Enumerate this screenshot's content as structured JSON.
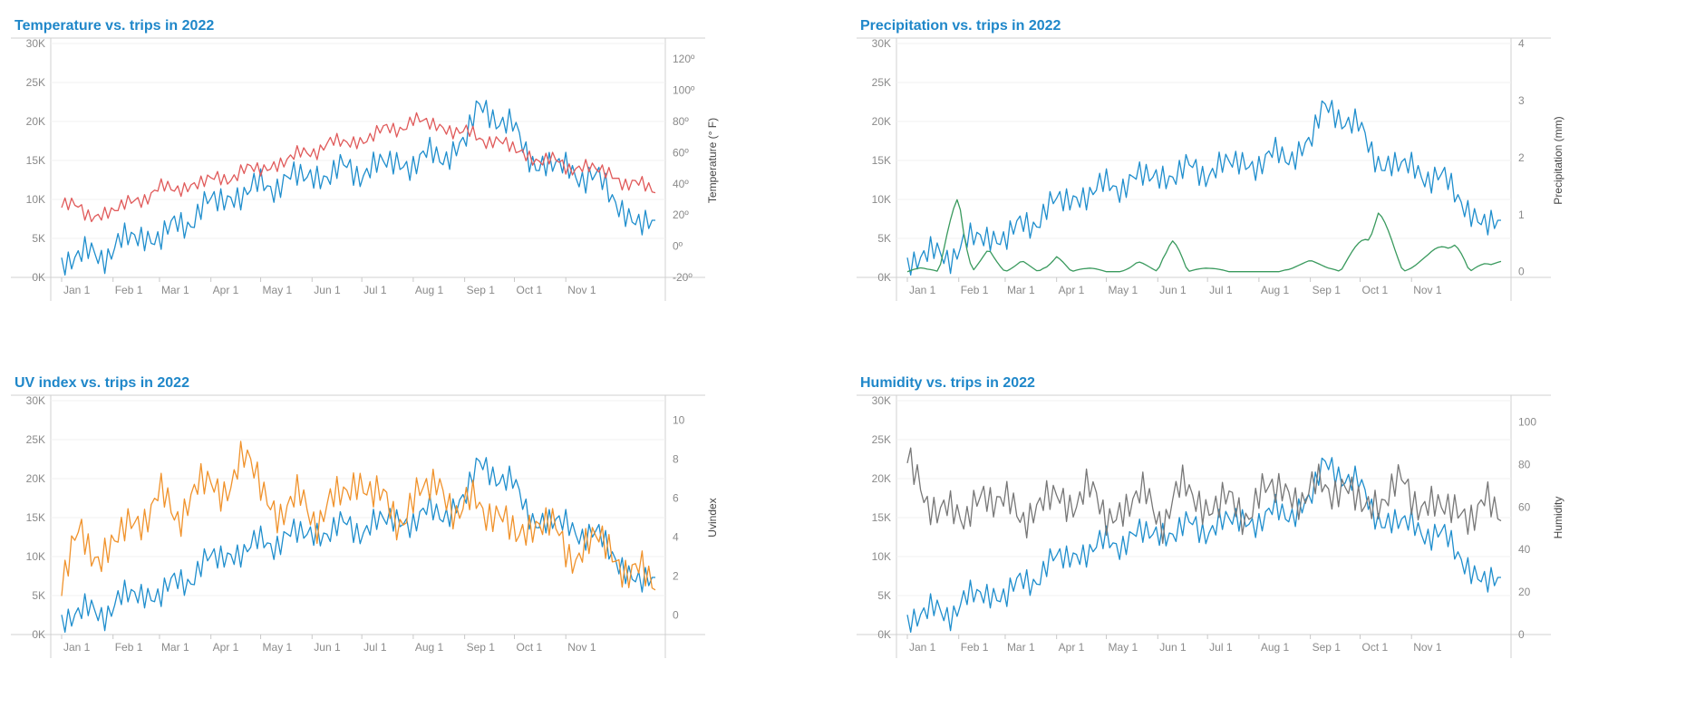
{
  "chart_data": [
    {
      "type": "line",
      "title": "Temperature vs. trips in 2022",
      "x_ticks": [
        "Jan 1",
        "Feb 1",
        "Mar 1",
        "Apr 1",
        "May 1",
        "Jun 1",
        "Jul 1",
        "Aug 1",
        "Sep 1",
        "Oct 1",
        "Nov 1"
      ],
      "y_left": {
        "label": "",
        "ticks": [
          "0K",
          "5K",
          "10K",
          "15K",
          "20K",
          "25K",
          "30K"
        ],
        "ylim": [
          0,
          30000
        ]
      },
      "y_right": {
        "label": "Temperature (° F)",
        "ticks": [
          "-20º",
          "0º",
          "20º",
          "40º",
          "60º",
          "80º",
          "100º",
          "120º"
        ],
        "ylim": [
          -20,
          130
        ]
      },
      "series": [
        {
          "axis": "left",
          "color": "#1f8ecd",
          "x": [
            1,
            15,
            32,
            46,
            60,
            74,
            91,
            105,
            121,
            135,
            152,
            166,
            182,
            196,
            213,
            227,
            244,
            252,
            262,
            274,
            288,
            305,
            319,
            334,
            342,
            350
          ],
          "values": [
            1800,
            2800,
            3500,
            5500,
            5000,
            7000,
            9500,
            10500,
            11500,
            12500,
            13000,
            13500,
            13800,
            14500,
            14800,
            15500,
            17000,
            22000,
            21000,
            18500,
            14500,
            14000,
            13000,
            10500,
            8000,
            6500
          ]
        },
        {
          "axis": "right",
          "color": "#e05a5a",
          "x": [
            1,
            15,
            32,
            46,
            60,
            74,
            91,
            105,
            121,
            135,
            152,
            166,
            182,
            196,
            213,
            227,
            244,
            262,
            274,
            288,
            305,
            319,
            334,
            342,
            350
          ],
          "values": [
            30,
            20,
            22,
            30,
            36,
            38,
            42,
            46,
            50,
            54,
            62,
            66,
            68,
            74,
            80,
            78,
            72,
            68,
            62,
            56,
            52,
            50,
            46,
            40,
            38
          ]
        }
      ]
    },
    {
      "type": "line",
      "title": "Precipitation vs. trips in 2022",
      "x_ticks": [
        "Jan 1",
        "Feb 1",
        "Mar 1",
        "Apr 1",
        "May 1",
        "Jun 1",
        "Jul 1",
        "Aug 1",
        "Sep 1",
        "Oct 1",
        "Nov 1"
      ],
      "y_left": {
        "label": "",
        "ticks": [
          "0K",
          "5K",
          "10K",
          "15K",
          "20K",
          "25K",
          "30K"
        ],
        "ylim": [
          0,
          30000
        ]
      },
      "y_right": {
        "label": "Precipitation (mm)",
        "ticks": [
          "0",
          "1",
          "2",
          "3",
          "4"
        ],
        "ylim": [
          -0.1,
          4
        ]
      },
      "series": [
        {
          "axis": "left",
          "color": "#1f8ecd",
          "x": [
            1,
            15,
            32,
            46,
            60,
            74,
            91,
            105,
            121,
            135,
            152,
            166,
            182,
            196,
            213,
            227,
            244,
            252,
            262,
            274,
            288,
            305,
            319,
            334,
            342,
            350
          ],
          "values": [
            1800,
            2800,
            3500,
            5500,
            5000,
            7000,
            9500,
            10500,
            11500,
            12500,
            13000,
            13500,
            13800,
            14500,
            14800,
            15500,
            17000,
            22000,
            21000,
            18500,
            14500,
            14000,
            13000,
            10500,
            8000,
            6500
          ]
        },
        {
          "axis": "right",
          "color": "#3a9a5e",
          "x": [
            1,
            10,
            20,
            32,
            40,
            50,
            60,
            70,
            80,
            91,
            100,
            110,
            121,
            130,
            140,
            152,
            160,
            170,
            182,
            195,
            210,
            225,
            244,
            255,
            262,
            272,
            285,
            300,
            315,
            330,
            340,
            350
          ],
          "values": [
            0,
            0.1,
            0,
            1.6,
            0,
            0.4,
            0,
            0.2,
            0,
            0.3,
            0,
            0.1,
            0,
            0,
            0.2,
            0,
            0.8,
            0,
            0.1,
            0,
            0,
            0,
            0.2,
            0.1,
            0,
            0.5,
            1.2,
            0,
            0.3,
            0.7,
            0,
            0.2
          ]
        }
      ]
    },
    {
      "type": "line",
      "title": "UV index vs. trips in 2022",
      "x_ticks": [
        "Jan 1",
        "Feb 1",
        "Mar 1",
        "Apr 1",
        "May 1",
        "Jun 1",
        "Jul 1",
        "Aug 1",
        "Sep 1",
        "Oct 1",
        "Nov 1"
      ],
      "y_left": {
        "label": "",
        "ticks": [
          "0K",
          "5K",
          "10K",
          "15K",
          "20K",
          "25K",
          "30K"
        ],
        "ylim": [
          0,
          30000
        ]
      },
      "y_right": {
        "label": "Uvindex",
        "ticks": [
          "0",
          "2",
          "4",
          "6",
          "8",
          "10"
        ],
        "ylim": [
          -1,
          11
        ]
      },
      "series": [
        {
          "axis": "left",
          "color": "#1f8ecd",
          "x": [
            1,
            15,
            32,
            46,
            60,
            74,
            91,
            105,
            121,
            135,
            152,
            166,
            182,
            196,
            213,
            227,
            244,
            252,
            262,
            274,
            288,
            305,
            319,
            334,
            342,
            350
          ],
          "values": [
            1800,
            2800,
            3500,
            5500,
            5000,
            7000,
            9500,
            10500,
            11500,
            12500,
            13000,
            13500,
            13800,
            14500,
            14800,
            15500,
            17000,
            22000,
            21000,
            18500,
            14500,
            14000,
            13000,
            10500,
            8000,
            6500
          ]
        },
        {
          "axis": "right",
          "color": "#f0922b",
          "x": [
            1,
            12,
            24,
            36,
            48,
            60,
            72,
            84,
            96,
            108,
            120,
            132,
            144,
            156,
            168,
            180,
            192,
            204,
            216,
            228,
            240,
            252,
            264,
            276,
            288,
            300,
            312,
            324,
            336,
            344,
            350
          ],
          "values": [
            2,
            4,
            3,
            4,
            5,
            6,
            5,
            7,
            6,
            8,
            7,
            5,
            6,
            5,
            6,
            7,
            6,
            5,
            6,
            7,
            5,
            6,
            5,
            4,
            5,
            4,
            3,
            4,
            3,
            2,
            2
          ]
        }
      ]
    },
    {
      "type": "line",
      "title": "Humidity vs. trips in 2022",
      "x_ticks": [
        "Jan 1",
        "Feb 1",
        "Mar 1",
        "Apr 1",
        "May 1",
        "Jun 1",
        "Jul 1",
        "Aug 1",
        "Sep 1",
        "Oct 1",
        "Nov 1"
      ],
      "y_left": {
        "label": "",
        "ticks": [
          "0K",
          "5K",
          "10K",
          "15K",
          "20K",
          "25K",
          "30K"
        ],
        "ylim": [
          0,
          30000
        ]
      },
      "y_right": {
        "label": "Humidity",
        "ticks": [
          "0",
          "20",
          "40",
          "60",
          "80",
          "100"
        ],
        "ylim": [
          0,
          110
        ]
      },
      "series": [
        {
          "axis": "left",
          "color": "#1f8ecd",
          "x": [
            1,
            15,
            32,
            46,
            60,
            74,
            91,
            105,
            121,
            135,
            152,
            166,
            182,
            196,
            213,
            227,
            244,
            252,
            262,
            274,
            288,
            305,
            319,
            334,
            342,
            350
          ],
          "values": [
            1800,
            2800,
            3500,
            5500,
            5000,
            7000,
            9500,
            10500,
            11500,
            12500,
            13000,
            13500,
            13800,
            14500,
            14800,
            15500,
            17000,
            22000,
            21000,
            18500,
            14500,
            14000,
            13000,
            10500,
            8000,
            6500
          ]
        },
        {
          "axis": "right",
          "color": "#777777",
          "x": [
            1,
            12,
            24,
            36,
            48,
            60,
            72,
            84,
            96,
            108,
            120,
            132,
            144,
            156,
            168,
            180,
            192,
            204,
            216,
            228,
            240,
            252,
            264,
            276,
            288,
            300,
            312,
            324,
            336,
            344,
            350
          ],
          "values": [
            90,
            55,
            65,
            50,
            70,
            60,
            55,
            65,
            60,
            70,
            55,
            60,
            65,
            55,
            70,
            60,
            62,
            58,
            66,
            70,
            62,
            72,
            68,
            60,
            65,
            70,
            62,
            58,
            60,
            55,
            60
          ]
        }
      ]
    }
  ]
}
